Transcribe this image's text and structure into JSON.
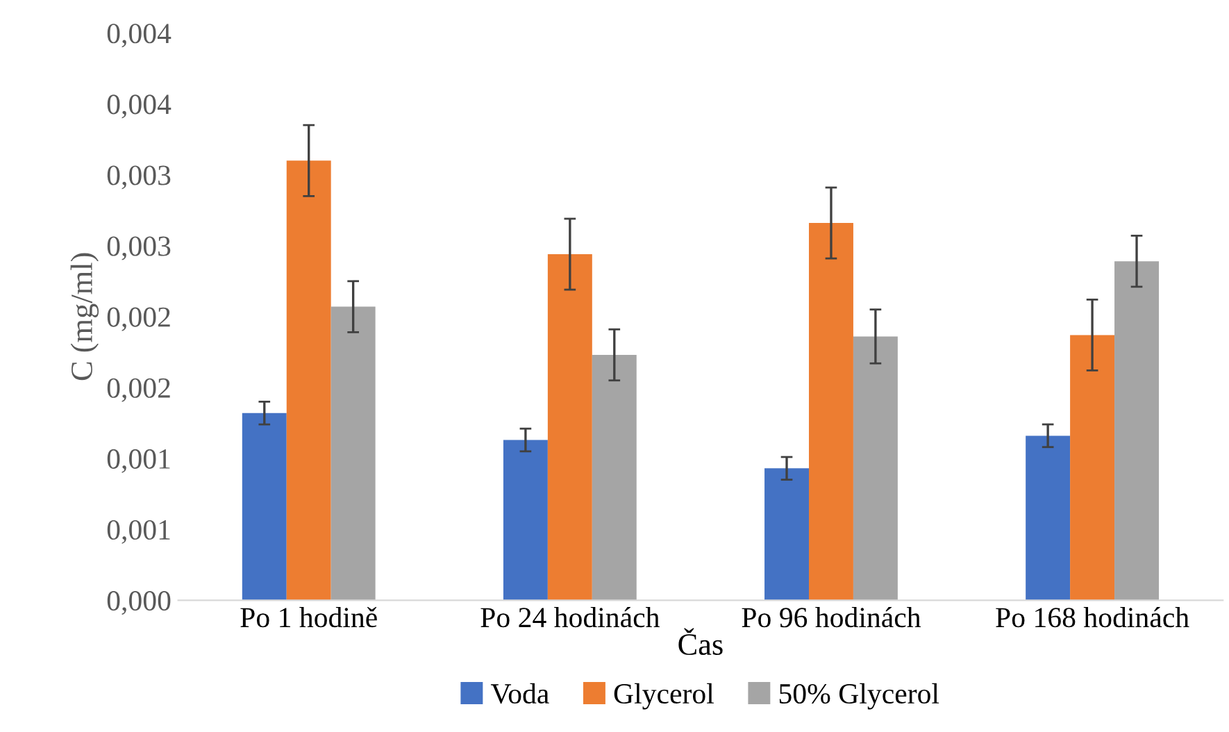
{
  "chart_data": {
    "type": "bar",
    "xlabel": "Čas",
    "ylabel": "C (mg/ml)",
    "categories": [
      "Po 1 hodině",
      "Po 24 hodinách",
      "Po 96 hodinách",
      "Po 168 hodinách"
    ],
    "series": [
      {
        "name": "Voda",
        "color": "#4472c4",
        "values": [
          0.00132,
          0.00113,
          0.00093,
          0.00116
        ],
        "errors": [
          8e-05,
          8e-05,
          8e-05,
          8e-05
        ]
      },
      {
        "name": "Glycerol",
        "color": "#ed7d31",
        "values": [
          0.0031,
          0.00244,
          0.00266,
          0.00187
        ],
        "errors": [
          0.00025,
          0.00025,
          0.00025,
          0.00025
        ]
      },
      {
        "name": "50% Glycerol",
        "color": "#a5a5a5",
        "values": [
          0.00207,
          0.00173,
          0.00186,
          0.00239
        ],
        "errors": [
          0.00018,
          0.00018,
          0.00019,
          0.00018
        ]
      }
    ],
    "ylim": [
      0,
      0.004
    ],
    "yticks": [
      {
        "value": 0,
        "label": "0,000"
      },
      {
        "value": 0.0005,
        "label": "0,001"
      },
      {
        "value": 0.001,
        "label": "0,001"
      },
      {
        "value": 0.0015,
        "label": "0,002"
      },
      {
        "value": 0.002,
        "label": "0,002"
      },
      {
        "value": 0.0025,
        "label": "0,003"
      },
      {
        "value": 0.003,
        "label": "0,003"
      },
      {
        "value": 0.0035,
        "label": "0,004"
      },
      {
        "value": 0.004,
        "label": "0,004"
      }
    ],
    "grid": false,
    "legend": "bottom"
  }
}
